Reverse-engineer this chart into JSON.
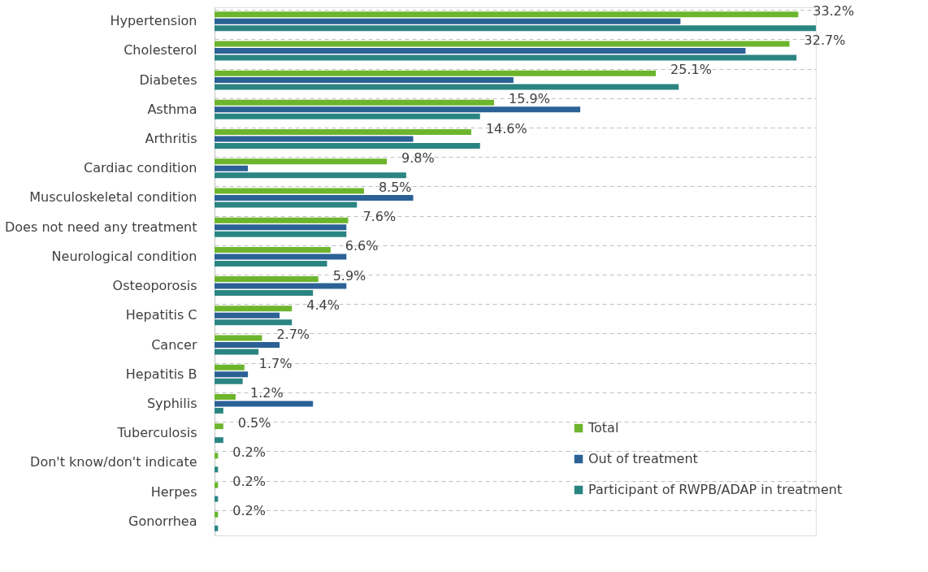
{
  "chart_data": {
    "type": "bar",
    "orientation": "horizontal",
    "grid": "y",
    "legend": "bottom right",
    "categories": [
      "Hypertension",
      "Cholesterol",
      "Diabetes",
      "Asthma",
      "Arthritis",
      "Cardiac condition",
      "Musculoskeletal condition",
      "Does not need any treatment",
      "Neurological condition",
      "Osteoporosis",
      "Hepatitis C",
      "Cancer",
      "Hepatitis B",
      "Syphilis",
      "Tuberculosis",
      "Don't know/don't indicate",
      "Herpes",
      "Gonorrhea"
    ],
    "series": [
      {
        "name": "Total",
        "color": "#6cb52d",
        "values": [
          33.2,
          32.7,
          25.1,
          15.9,
          14.6,
          9.8,
          8.5,
          7.6,
          6.6,
          5.9,
          4.4,
          2.7,
          1.7,
          1.2,
          0.5,
          0.2,
          0.2,
          0.2
        ],
        "value_labels": [
          "33.2%",
          "32.7%",
          "25.1%",
          "15.9%",
          "14.6%",
          "9.8%",
          "8.5%",
          "7.6%",
          "6.6%",
          "5.9%",
          "4.4%",
          "2.7%",
          "1.7%",
          "1.2%",
          "0.5%",
          "0.2%",
          "0.2%",
          "0.2%"
        ]
      },
      {
        "name": "Out of treatment",
        "color": "#2b6195",
        "values": [
          26.5,
          30.2,
          17.0,
          20.8,
          11.3,
          1.9,
          11.3,
          7.5,
          7.5,
          7.5,
          3.7,
          3.7,
          1.9,
          5.6,
          0,
          0,
          0,
          0
        ]
      },
      {
        "name": "Participant of RWPB/ADAP in  treatment",
        "color": "#2a8582",
        "values": [
          34.2,
          33.1,
          26.4,
          15.1,
          15.1,
          10.9,
          8.1,
          7.5,
          6.4,
          5.6,
          4.4,
          2.5,
          1.6,
          0.5,
          0.5,
          0.2,
          0.2,
          0.2
        ]
      }
    ]
  }
}
